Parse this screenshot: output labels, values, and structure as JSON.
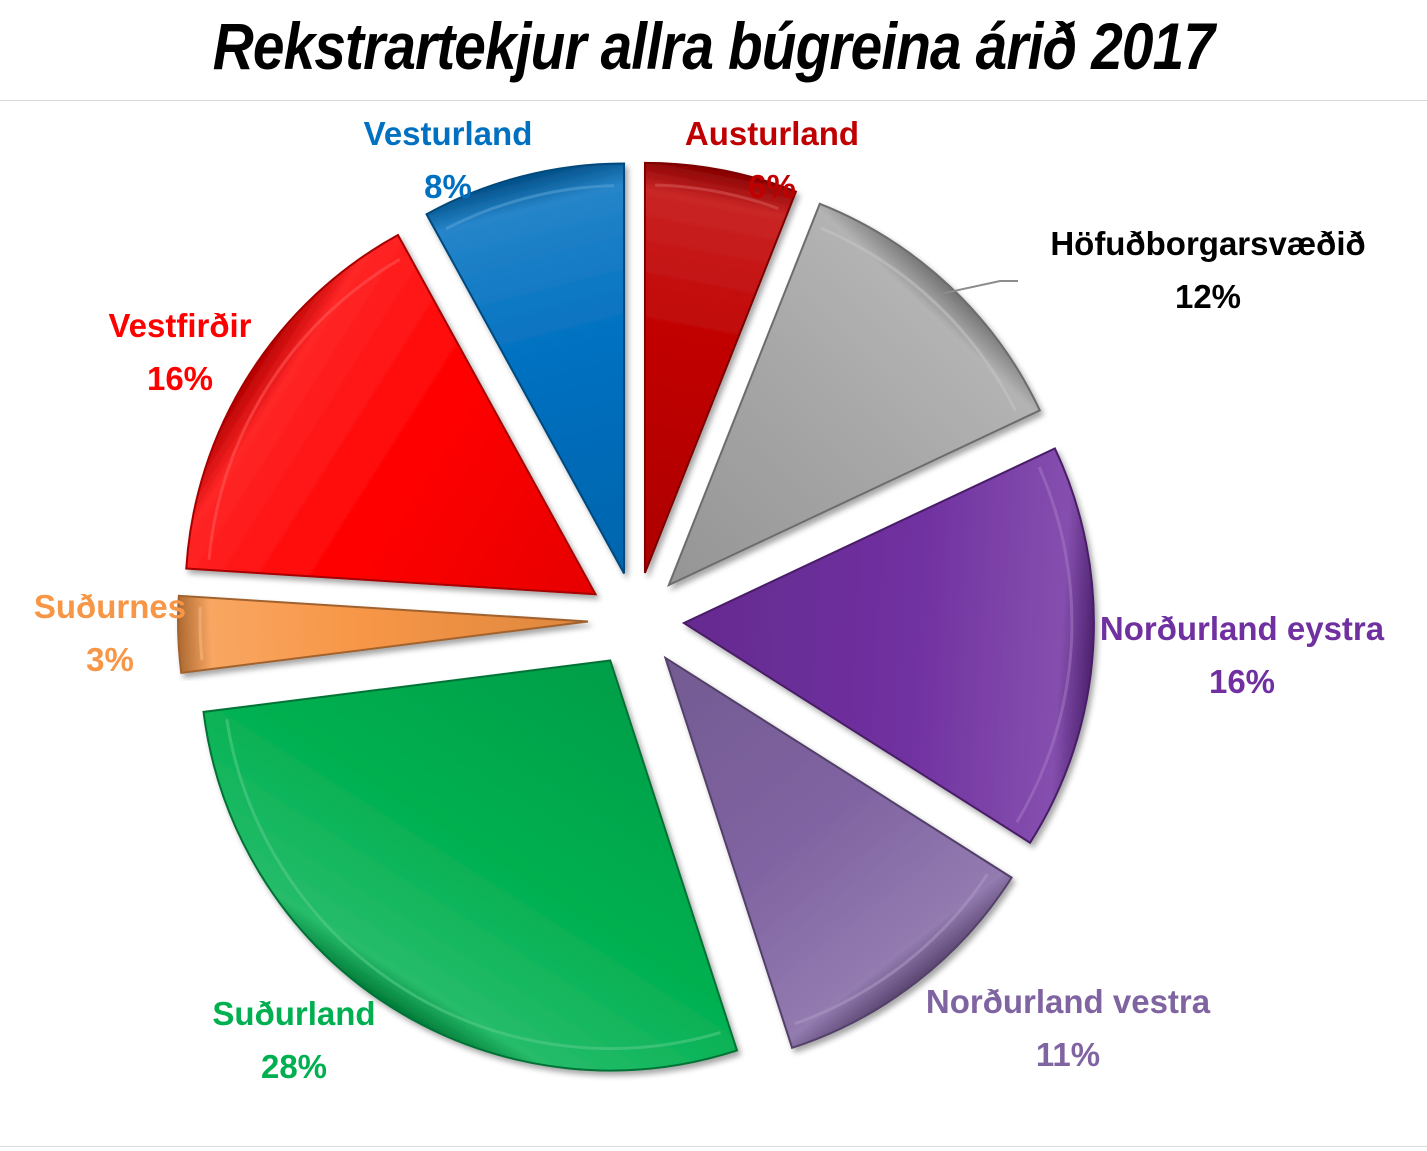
{
  "chart_data": {
    "type": "pie",
    "title": "Rekstrartekjur allra búgreina árið 2017",
    "slices": [
      {
        "name": "Austurland",
        "value": 6,
        "value_label": "6%",
        "color": "#c00000"
      },
      {
        "name": "Höfuðborgarsvæðið",
        "value": 12,
        "value_label": "12%",
        "color": "#a6a6a6"
      },
      {
        "name": "Norðurland eystra",
        "value": 16,
        "value_label": "16%",
        "color": "#7030a0"
      },
      {
        "name": "Norðurland vestra",
        "value": 11,
        "value_label": "11%",
        "color": "#8064a2"
      },
      {
        "name": "Suðurland",
        "value": 28,
        "value_label": "28%",
        "color": "#00b050"
      },
      {
        "name": "Suðurnes",
        "value": 3,
        "value_label": "3%",
        "color": "#f79646"
      },
      {
        "name": "Vestfirðir",
        "value": 16,
        "value_label": "16%",
        "color": "#ff0000"
      },
      {
        "name": "Vesturland",
        "value": 8,
        "value_label": "8%",
        "color": "#0070c0"
      }
    ],
    "label_colors": {
      "Austurland": "#c00000",
      "Höfuðborgarsvæðið": "#000000",
      "Norðurland eystra": "#7030a0",
      "Norðurland vestra": "#8064a2",
      "Suðurland": "#00b050",
      "Suðurnes": "#f79646",
      "Vestfirðir": "#ff0000",
      "Vesturland": "#0070c0"
    },
    "exploded": true,
    "legend": "none"
  }
}
